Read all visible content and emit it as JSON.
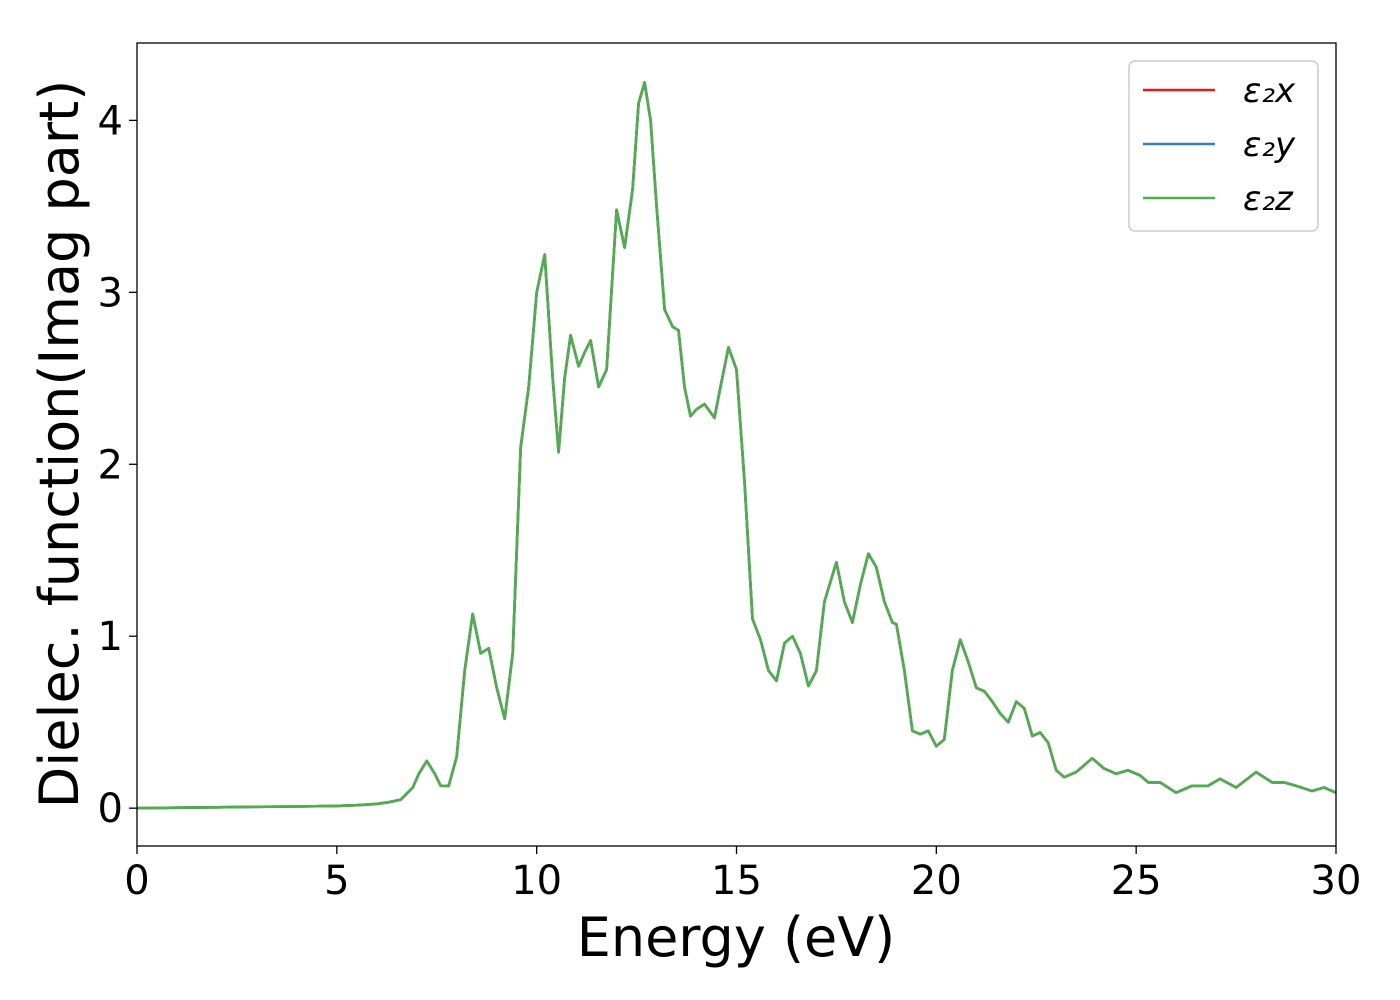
{
  "chart_data": {
    "type": "line",
    "xlabel": "Energy (eV)",
    "ylabel": "Dielec. function(Imag part)",
    "xlim": [
      0,
      30
    ],
    "ylim": [
      -0.22,
      4.45
    ],
    "xticks": [
      0,
      5,
      10,
      15,
      20,
      25,
      30
    ],
    "yticks": [
      0,
      1,
      2,
      3,
      4
    ],
    "grid": false,
    "legend_position": "top-right",
    "x": [
      0,
      1,
      2,
      3,
      4,
      5,
      5.5,
      6,
      6.3,
      6.6,
      6.9,
      7.05,
      7.25,
      7.45,
      7.6,
      7.8,
      8.0,
      8.2,
      8.4,
      8.6,
      8.8,
      9.0,
      9.2,
      9.4,
      9.6,
      9.8,
      10.0,
      10.2,
      10.4,
      10.55,
      10.7,
      10.85,
      11.05,
      11.2,
      11.35,
      11.55,
      11.75,
      12.0,
      12.2,
      12.4,
      12.55,
      12.7,
      12.85,
      13.0,
      13.2,
      13.4,
      13.55,
      13.7,
      13.85,
      14.0,
      14.2,
      14.45,
      14.6,
      14.8,
      15.0,
      15.2,
      15.4,
      15.6,
      15.8,
      16.0,
      16.2,
      16.4,
      16.6,
      16.8,
      17.0,
      17.2,
      17.5,
      17.7,
      17.9,
      18.1,
      18.3,
      18.5,
      18.7,
      18.9,
      19.0,
      19.2,
      19.4,
      19.6,
      19.8,
      20.0,
      20.2,
      20.4,
      20.6,
      20.8,
      21.0,
      21.2,
      21.4,
      21.6,
      21.8,
      22.0,
      22.2,
      22.4,
      22.6,
      22.8,
      23.0,
      23.2,
      23.5,
      23.9,
      24.2,
      24.5,
      24.8,
      25.1,
      25.3,
      25.6,
      26.0,
      26.4,
      26.8,
      27.1,
      27.5,
      28.0,
      28.4,
      28.7,
      29.0,
      29.4,
      29.7,
      30.0
    ],
    "series": [
      {
        "name": "ε₂x",
        "color": "#e41a1c",
        "values": [
          0.0,
          0.003,
          0.005,
          0.008,
          0.01,
          0.013,
          0.017,
          0.025,
          0.035,
          0.05,
          0.12,
          0.2,
          0.275,
          0.2,
          0.13,
          0.13,
          0.3,
          0.8,
          1.13,
          0.9,
          0.93,
          0.7,
          0.52,
          0.9,
          2.1,
          2.45,
          3.0,
          3.22,
          2.5,
          2.07,
          2.5,
          2.75,
          2.57,
          2.65,
          2.72,
          2.45,
          2.55,
          3.48,
          3.26,
          3.6,
          4.1,
          4.22,
          4.0,
          3.5,
          2.9,
          2.8,
          2.78,
          2.45,
          2.28,
          2.32,
          2.35,
          2.27,
          2.45,
          2.68,
          2.55,
          1.9,
          1.1,
          0.98,
          0.8,
          0.74,
          0.96,
          1.0,
          0.9,
          0.71,
          0.8,
          1.2,
          1.43,
          1.2,
          1.08,
          1.3,
          1.48,
          1.4,
          1.2,
          1.08,
          1.07,
          0.8,
          0.45,
          0.43,
          0.45,
          0.36,
          0.4,
          0.8,
          0.98,
          0.85,
          0.7,
          0.68,
          0.62,
          0.55,
          0.5,
          0.62,
          0.58,
          0.42,
          0.44,
          0.38,
          0.22,
          0.18,
          0.21,
          0.29,
          0.23,
          0.2,
          0.22,
          0.19,
          0.15,
          0.15,
          0.09,
          0.13,
          0.13,
          0.17,
          0.12,
          0.21,
          0.15,
          0.15,
          0.13,
          0.1,
          0.12,
          0.09
        ]
      },
      {
        "name": "ε₂y",
        "color": "#377eb8",
        "values": [
          0.0,
          0.003,
          0.005,
          0.008,
          0.01,
          0.013,
          0.017,
          0.025,
          0.035,
          0.05,
          0.12,
          0.2,
          0.275,
          0.2,
          0.13,
          0.13,
          0.3,
          0.8,
          1.13,
          0.9,
          0.93,
          0.7,
          0.52,
          0.9,
          2.1,
          2.45,
          3.0,
          3.22,
          2.5,
          2.07,
          2.5,
          2.75,
          2.57,
          2.65,
          2.72,
          2.45,
          2.55,
          3.48,
          3.26,
          3.6,
          4.1,
          4.22,
          4.0,
          3.5,
          2.9,
          2.8,
          2.78,
          2.45,
          2.28,
          2.32,
          2.35,
          2.27,
          2.45,
          2.68,
          2.55,
          1.9,
          1.1,
          0.98,
          0.8,
          0.74,
          0.96,
          1.0,
          0.9,
          0.71,
          0.8,
          1.2,
          1.43,
          1.2,
          1.08,
          1.3,
          1.48,
          1.4,
          1.2,
          1.08,
          1.07,
          0.8,
          0.45,
          0.43,
          0.45,
          0.36,
          0.4,
          0.8,
          0.98,
          0.85,
          0.7,
          0.68,
          0.62,
          0.55,
          0.5,
          0.62,
          0.58,
          0.42,
          0.44,
          0.38,
          0.22,
          0.18,
          0.21,
          0.29,
          0.23,
          0.2,
          0.22,
          0.19,
          0.15,
          0.15,
          0.09,
          0.13,
          0.13,
          0.17,
          0.12,
          0.21,
          0.15,
          0.15,
          0.13,
          0.1,
          0.12,
          0.09
        ]
      },
      {
        "name": "ε₂z",
        "color": "#4daf4a",
        "values": [
          0.0,
          0.003,
          0.005,
          0.008,
          0.01,
          0.013,
          0.017,
          0.025,
          0.035,
          0.05,
          0.12,
          0.2,
          0.275,
          0.2,
          0.13,
          0.13,
          0.3,
          0.8,
          1.13,
          0.9,
          0.93,
          0.7,
          0.52,
          0.9,
          2.1,
          2.45,
          3.0,
          3.22,
          2.5,
          2.07,
          2.5,
          2.75,
          2.57,
          2.65,
          2.72,
          2.45,
          2.55,
          3.48,
          3.26,
          3.6,
          4.1,
          4.22,
          4.0,
          3.5,
          2.9,
          2.8,
          2.78,
          2.45,
          2.28,
          2.32,
          2.35,
          2.27,
          2.45,
          2.68,
          2.55,
          1.9,
          1.1,
          0.98,
          0.8,
          0.74,
          0.96,
          1.0,
          0.9,
          0.71,
          0.8,
          1.2,
          1.43,
          1.2,
          1.08,
          1.3,
          1.48,
          1.4,
          1.2,
          1.08,
          1.07,
          0.8,
          0.45,
          0.43,
          0.45,
          0.36,
          0.4,
          0.8,
          0.98,
          0.85,
          0.7,
          0.68,
          0.62,
          0.55,
          0.5,
          0.62,
          0.58,
          0.42,
          0.44,
          0.38,
          0.22,
          0.18,
          0.21,
          0.29,
          0.23,
          0.2,
          0.22,
          0.19,
          0.15,
          0.15,
          0.09,
          0.13,
          0.13,
          0.17,
          0.12,
          0.21,
          0.15,
          0.15,
          0.13,
          0.1,
          0.12,
          0.09
        ]
      }
    ]
  }
}
